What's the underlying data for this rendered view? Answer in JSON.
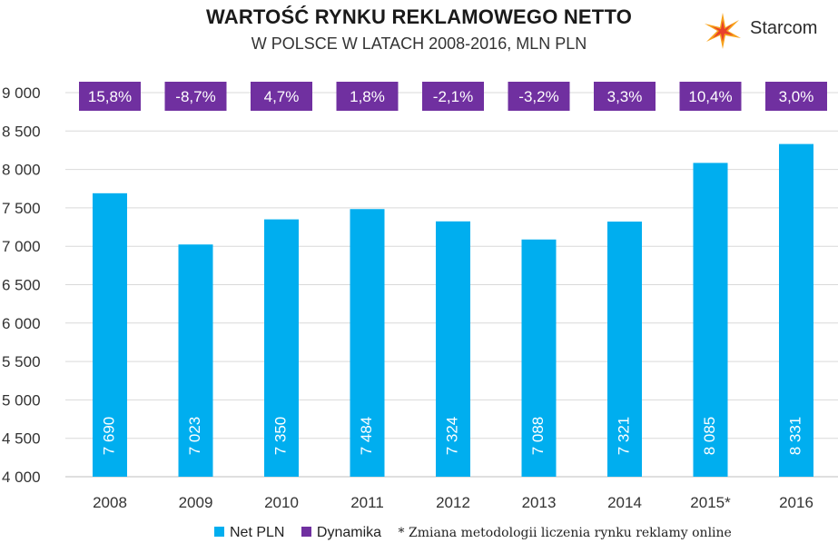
{
  "title": "WARTOŚĆ RYNKU REKLAMOWEGO NETTO",
  "subtitle": "W POLSCE W LATACH 2008-2016, MLN PLN",
  "logo": {
    "text": "Starcom",
    "icon": "starburst-icon"
  },
  "legend": {
    "items": [
      {
        "label": "Net PLN",
        "color": "#00AEEF"
      },
      {
        "label": "Dynamika",
        "color": "#7030A0"
      }
    ],
    "note": "* Zmiana metodologii liczenia rynku reklamy online"
  },
  "chart_data": {
    "type": "bar",
    "title": "WARTOŚĆ RYNKU REKLAMOWEGO NETTO",
    "subtitle": "W POLSCE W LATACH 2008-2016, MLN PLN",
    "xlabel": "",
    "ylabel": "",
    "ylim": [
      4000,
      9000
    ],
    "yticks": [
      4000,
      4500,
      5000,
      5500,
      6000,
      6500,
      7000,
      7500,
      8000,
      8500,
      9000
    ],
    "ytick_labels": [
      "4 000",
      "4 500",
      "5 000",
      "5 500",
      "6 000",
      "6 500",
      "7 000",
      "7 500",
      "8 000",
      "8 500",
      "9 000"
    ],
    "grid": true,
    "categories": [
      "2008",
      "2009",
      "2010",
      "2011",
      "2012",
      "2013",
      "2014",
      "2015*",
      "2016"
    ],
    "series": [
      {
        "name": "Net PLN",
        "color": "#00AEEF",
        "values": [
          7690,
          7023,
          7350,
          7484,
          7324,
          7088,
          7321,
          8085,
          8331
        ],
        "labels": [
          "7 690",
          "7 023",
          "7 350",
          "7 484",
          "7 324",
          "7 088",
          "7 321",
          "8 085",
          "8 331"
        ]
      },
      {
        "name": "Dynamika",
        "color": "#7030A0",
        "labels": [
          "15,8%",
          "-8,7%",
          "4,7%",
          "1,8%",
          "-2,1%",
          "-3,2%",
          "3,3%",
          "10,4%",
          "3,0%"
        ]
      }
    ],
    "legend_position": "bottom"
  }
}
